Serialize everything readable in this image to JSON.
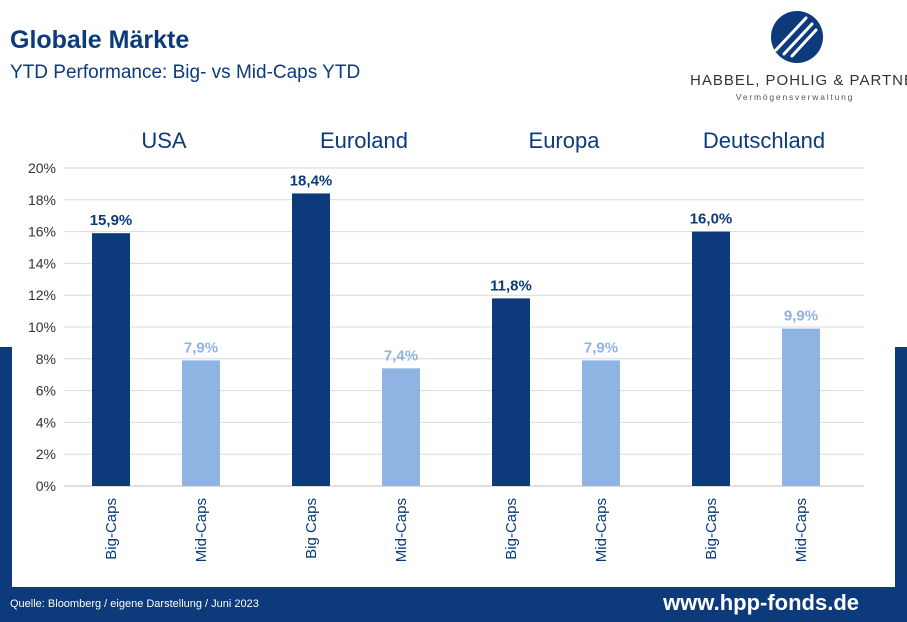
{
  "header": {
    "title": "Globale Märkte",
    "subtitle": "YTD Performance: Big- vs Mid-Caps YTD"
  },
  "logo": {
    "name": "HABBEL, POHLIG & PARTNER",
    "tagline": "Vermögensverwaltung"
  },
  "footer": {
    "source": "Quelle: Bloomberg / eigene Darstellung / Juni 2023",
    "url": "www.hpp-fonds.de"
  },
  "colors": {
    "brand": "#0c3a7a",
    "big_caps": "#0c3a7a",
    "mid_caps": "#8fb3e3"
  },
  "chart_data": {
    "type": "bar",
    "ylim": [
      0,
      20
    ],
    "yticks": [
      "0%",
      "2%",
      "4%",
      "6%",
      "8%",
      "10%",
      "12%",
      "14%",
      "16%",
      "18%",
      "20%"
    ],
    "grid": true,
    "groups": [
      {
        "name": "USA",
        "bars": [
          {
            "label": "Big-Caps",
            "value": 15.9,
            "display": "15,9%",
            "series": "big"
          },
          {
            "label": "Mid-Caps",
            "value": 7.9,
            "display": "7,9%",
            "series": "mid"
          }
        ]
      },
      {
        "name": "Euroland",
        "bars": [
          {
            "label": "Big Caps",
            "value": 18.4,
            "display": "18,4%",
            "series": "big"
          },
          {
            "label": "Mid-Caps",
            "value": 7.4,
            "display": "7,4%",
            "series": "mid"
          }
        ]
      },
      {
        "name": "Europa",
        "bars": [
          {
            "label": "Big-Caps",
            "value": 11.8,
            "display": "11,8%",
            "series": "big"
          },
          {
            "label": "Mid-Caps",
            "value": 7.9,
            "display": "7,9%",
            "series": "mid"
          }
        ]
      },
      {
        "name": "Deutschland",
        "bars": [
          {
            "label": "Big-Caps",
            "value": 16.0,
            "display": "16,0%",
            "series": "big"
          },
          {
            "label": "Mid-Caps",
            "value": 9.9,
            "display": "9,9%",
            "series": "mid"
          }
        ]
      }
    ]
  }
}
